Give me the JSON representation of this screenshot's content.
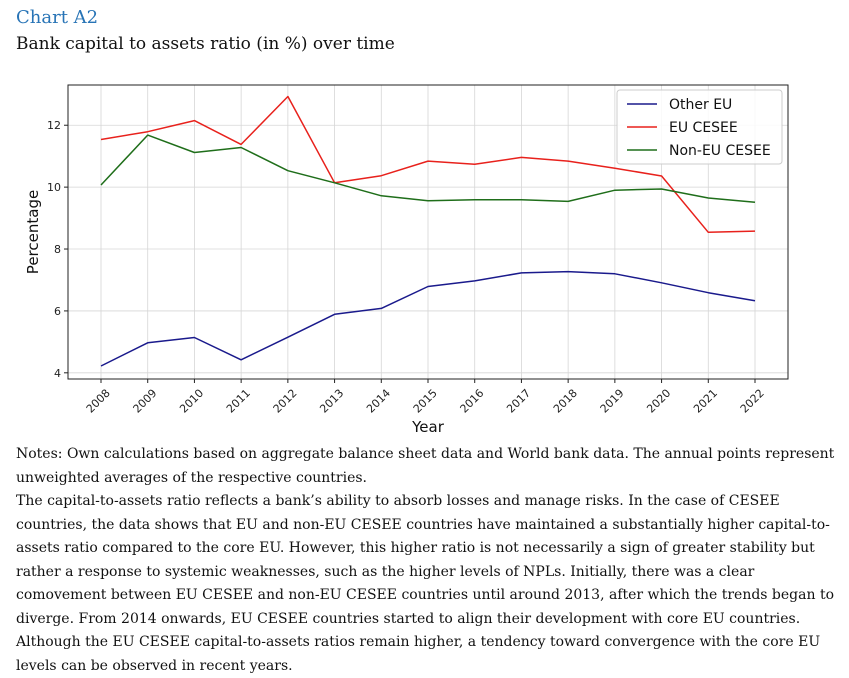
{
  "header": {
    "label": "Chart A2",
    "title": "Bank capital to assets ratio (in %) over time"
  },
  "chart_data": {
    "type": "line",
    "xlabel": "Year",
    "ylabel": "Percentage",
    "x": [
      "2008",
      "2009",
      "2010",
      "2011",
      "2012",
      "2013",
      "2014",
      "2015",
      "2016",
      "2017",
      "2018",
      "2019",
      "2020",
      "2021",
      "2022"
    ],
    "yticks": [
      4,
      6,
      8,
      10,
      12
    ],
    "ylim": [
      3.8,
      13.3
    ],
    "grid": true,
    "legend_position": "top-right",
    "series": [
      {
        "name": "Other EU",
        "color": "#1a1a8c",
        "values": [
          4.22,
          4.97,
          5.14,
          4.42,
          5.15,
          5.89,
          6.08,
          6.79,
          6.97,
          7.23,
          7.27,
          7.2,
          6.91,
          6.59,
          6.33
        ]
      },
      {
        "name": "EU CESEE",
        "color": "#e8211c",
        "values": [
          11.54,
          11.79,
          12.15,
          11.38,
          12.93,
          10.14,
          10.37,
          10.84,
          10.74,
          10.96,
          10.84,
          10.61,
          10.36,
          8.54,
          8.58
        ]
      },
      {
        "name": "Non-EU CESEE",
        "color": "#1f6e1a",
        "values": [
          10.07,
          11.68,
          11.12,
          11.28,
          10.53,
          10.14,
          9.72,
          9.56,
          9.59,
          9.59,
          9.54,
          9.9,
          9.94,
          9.65,
          9.51
        ]
      }
    ]
  },
  "notes": {
    "source": "Notes: Own calculations based on aggregate balance sheet data and World bank data. The annual points represent unweighted averages of the respective countries.",
    "body": "The capital-to-assets ratio reflects a bank’s ability to absorb losses and manage risks. In the case of CESEE countries, the data shows that EU and non-EU CESEE countries have maintained a substantially higher capital-to-assets ratio compared to the core EU. However, this higher ratio is not necessarily a sign of greater stability but rather a response to systemic weaknesses, such as the higher levels of NPLs. Initially, there was a clear comovement between EU CESEE and non-EU CESEE countries until around 2013, after which the trends began to diverge. From 2014 onwards, EU CESEE countries started to align their development with core EU countries. Although the EU CESEE capital-to-assets ratios remain higher, a tendency toward convergence with the core EU levels can be observed in recent years."
  }
}
